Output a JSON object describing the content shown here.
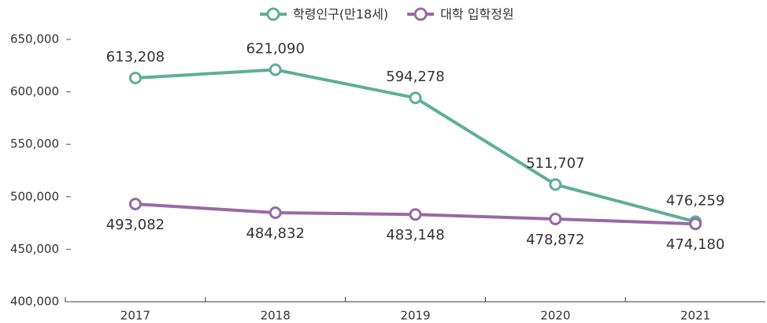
{
  "chart_data": {
    "type": "line",
    "categories": [
      "2017",
      "2018",
      "2019",
      "2020",
      "2021"
    ],
    "series": [
      {
        "name": "학령인구(만18세)",
        "color": "#5fae98",
        "values": [
          613208,
          621090,
          594278,
          511707,
          476259
        ],
        "value_labels": [
          "613,208",
          "621,090",
          "594,278",
          "511,707",
          "476,259"
        ]
      },
      {
        "name": "대학 입학정원",
        "color": "#9a69a5",
        "values": [
          493082,
          484832,
          483148,
          478872,
          474180
        ],
        "value_labels": [
          "493,082",
          "484,832",
          "483,148",
          "478,872",
          "474,180"
        ]
      }
    ],
    "ylim": [
      400000,
      650000
    ],
    "yticks": [
      {
        "value": 400000,
        "label": "400,000"
      },
      {
        "value": 450000,
        "label": "450,000"
      },
      {
        "value": 500000,
        "label": "500,000"
      },
      {
        "value": 550000,
        "label": "550,000"
      },
      {
        "value": 600000,
        "label": "600,000"
      },
      {
        "value": 650000,
        "label": "650,000"
      }
    ],
    "grid": false,
    "legend": "top"
  }
}
